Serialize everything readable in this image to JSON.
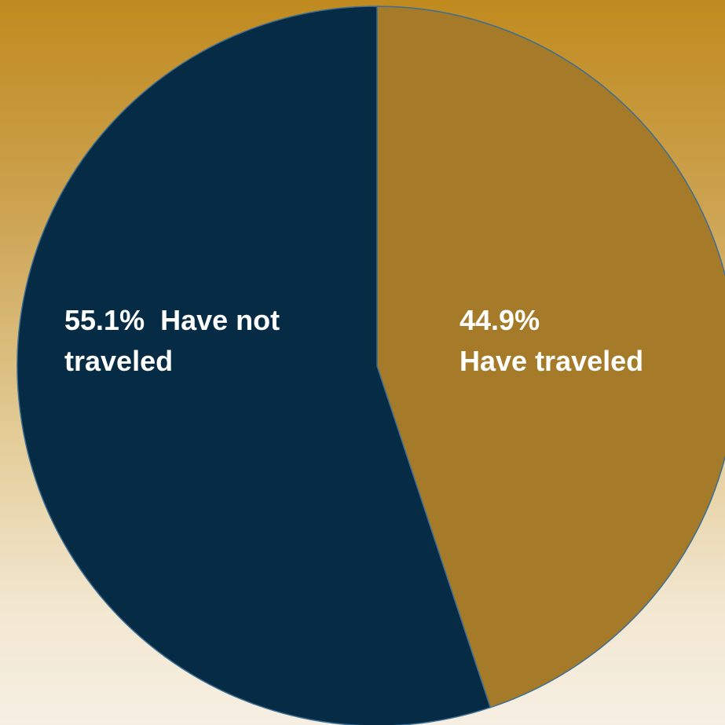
{
  "chart_data": {
    "type": "pie",
    "slices": [
      {
        "value": 44.9,
        "label_lines": [
          "44.9%",
          "Have traveled"
        ],
        "color": "#a57a28"
      },
      {
        "value": 55.1,
        "label_lines": [
          "55.1%  Have not",
          "traveled"
        ],
        "color": "#062b44"
      }
    ],
    "start_angle": "12 o'clock",
    "direction": "clockwise",
    "edge_color": "#3d6e93",
    "legend": "none"
  }
}
